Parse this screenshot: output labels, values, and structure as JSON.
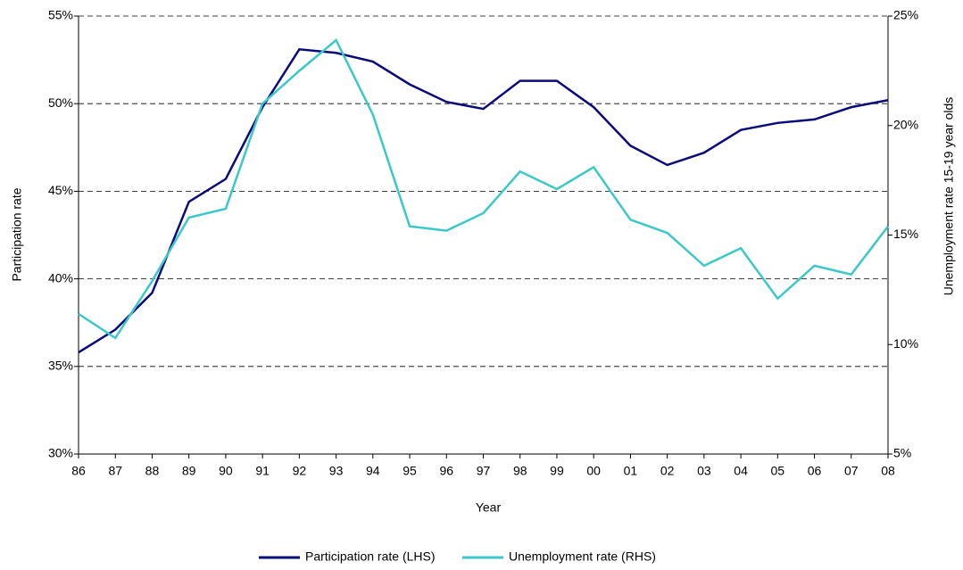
{
  "chart_data": {
    "type": "line",
    "x_label": "Year",
    "y_label": "Participation rate",
    "y2_label": "Unemployment rate 15-19 year olds",
    "categories": [
      "86",
      "87",
      "88",
      "89",
      "90",
      "91",
      "92",
      "93",
      "94",
      "95",
      "96",
      "97",
      "98",
      "99",
      "00",
      "01",
      "02",
      "03",
      "04",
      "05",
      "06",
      "07",
      "08"
    ],
    "series": [
      {
        "name": "Participation rate (LHS)",
        "color": "#0a0a78",
        "values": [
          35.8,
          37.1,
          39.2,
          44.4,
          45.7,
          49.8,
          53.1,
          52.9,
          52.4,
          51.1,
          50.1,
          49.7,
          51.3,
          51.3,
          49.8,
          47.6,
          46.5,
          47.2,
          48.5,
          48.9,
          49.1,
          49.8,
          50.2
        ]
      },
      {
        "name": "Unemployment rate (RHS)",
        "color": "#3cc8c8",
        "axis": "y2",
        "values": [
          11.4,
          10.3,
          12.9,
          15.8,
          16.2,
          21.0,
          22.5,
          23.9,
          20.5,
          15.4,
          15.2,
          16.0,
          17.9,
          17.1,
          18.1,
          15.7,
          15.1,
          13.6,
          14.4,
          12.1,
          13.6,
          13.2,
          15.4
        ]
      }
    ],
    "ylim": [
      30,
      55
    ],
    "yticks": [
      {
        "value": 30,
        "label": "30%"
      },
      {
        "value": 35,
        "label": "35%"
      },
      {
        "value": 40,
        "label": "40%"
      },
      {
        "value": 45,
        "label": "45%"
      },
      {
        "value": 50,
        "label": "50%"
      },
      {
        "value": 55,
        "label": "55%"
      }
    ],
    "y2lim": [
      5,
      25
    ],
    "y2ticks": [
      {
        "value": 5,
        "label": "5%"
      },
      {
        "value": 10,
        "label": "10%"
      },
      {
        "value": 15,
        "label": "15%"
      },
      {
        "value": 20,
        "label": "20%"
      },
      {
        "value": 25,
        "label": "25%"
      }
    ],
    "grid": true,
    "legend": "bottom"
  }
}
